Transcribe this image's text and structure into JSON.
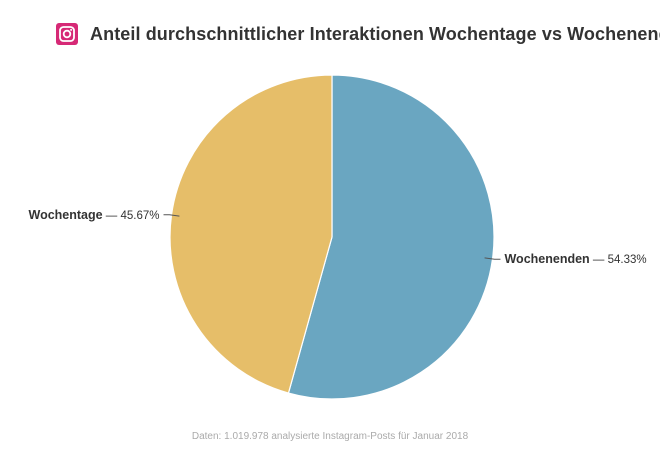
{
  "header": {
    "title": "Anteil durchschnittlicher Interaktionen Wochentage vs Wochenenden",
    "logo_icon": "instagram-icon",
    "logo_color": "#d62976"
  },
  "footer": {
    "source": "Daten: 1.019.978 analysierte Instagram-Posts für Januar 2018"
  },
  "chart_data": {
    "type": "pie",
    "title": "Anteil durchschnittlicher Interaktionen Wochentage vs Wochenenden",
    "slices": [
      {
        "name": "Wochenenden",
        "value": 54.33,
        "label": "54.33%",
        "color": "#6aa6c1"
      },
      {
        "name": "Wochentage",
        "value": 45.67,
        "label": "45.67%",
        "color": "#e6be69"
      }
    ]
  }
}
